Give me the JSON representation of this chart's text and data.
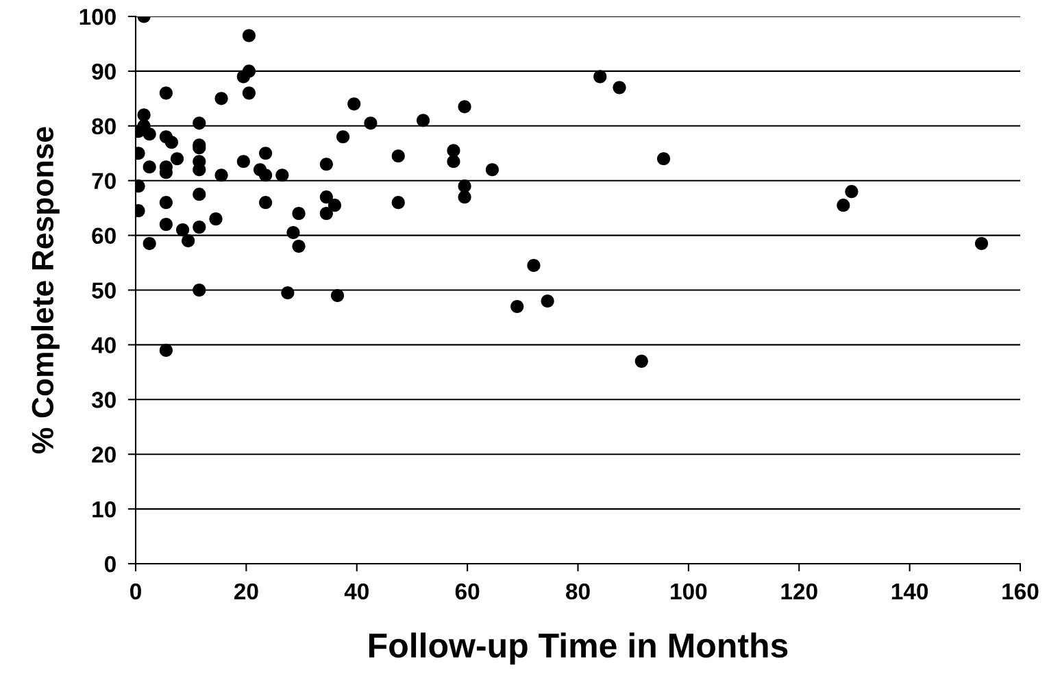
{
  "chart_data": {
    "type": "scatter",
    "xlabel": "Follow-up Time in Months",
    "ylabel": "% Complete Response",
    "xlim": [
      0,
      160
    ],
    "xticks": [
      0,
      20,
      40,
      60,
      80,
      100,
      120,
      140,
      160
    ],
    "ylim": [
      0,
      100
    ],
    "yticks": [
      0,
      10,
      20,
      30,
      40,
      50,
      60,
      70,
      80,
      90,
      100
    ],
    "grid": "y",
    "marker": "circle",
    "series": [
      {
        "color": "#000000",
        "x": [
          1.5,
          20.5,
          20.5,
          19.5,
          20.5,
          5.5,
          15.5,
          1.5,
          11.5,
          1.5,
          0.5,
          2.5,
          5.5,
          6.5,
          11.5,
          11.5,
          0.5,
          7.5,
          11.5,
          19.5,
          23.5,
          2.5,
          5.5,
          5.5,
          11.5,
          15.5,
          22.5,
          23.5,
          26.5,
          0.5,
          11.5,
          5.5,
          23.5,
          29.5,
          0.5,
          5.5,
          8.5,
          11.5,
          14.5,
          28.5,
          29.5,
          2.5,
          9.5,
          11.5,
          27.5,
          5.5,
          39.5,
          59.5,
          42.5,
          52,
          37.5,
          47.5,
          57.5,
          57.5,
          64.5,
          34.5,
          59.5,
          59.5,
          47.5,
          34.5,
          36,
          34.5,
          36.5,
          72,
          69,
          74.5,
          84,
          87.5,
          95.5,
          91.5,
          128,
          129.5,
          153
        ],
        "values": [
          100,
          96.5,
          90,
          89,
          86,
          86,
          85,
          82,
          80.5,
          80,
          79,
          78.5,
          78,
          77,
          76.5,
          76,
          75,
          74,
          73.5,
          73.5,
          75,
          72.5,
          72.5,
          71.5,
          72,
          71,
          72,
          71,
          71,
          69,
          67.5,
          66,
          66,
          64,
          64.5,
          62,
          61,
          61.5,
          63,
          60.5,
          58,
          58.5,
          59,
          50,
          49.5,
          39,
          84,
          83.5,
          80.5,
          81,
          78,
          74.5,
          75.5,
          73.5,
          72,
          73,
          69,
          67,
          66,
          67,
          65.5,
          64,
          49,
          54.5,
          47,
          48,
          89,
          87,
          74,
          37,
          65.5,
          68,
          58.5
        ]
      }
    ]
  }
}
